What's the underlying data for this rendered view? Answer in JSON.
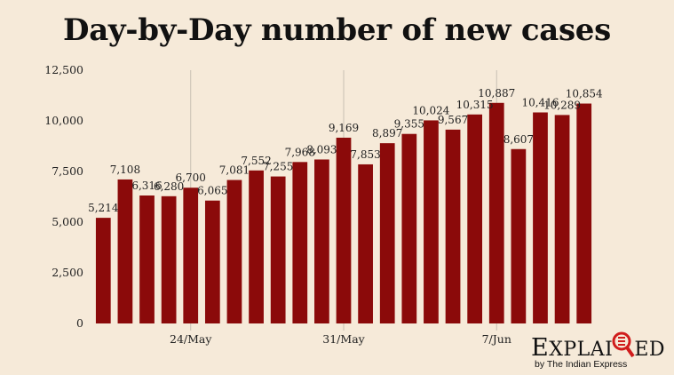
{
  "title": "Day-by-Day number of new cases",
  "chart_data": {
    "type": "bar",
    "title": "Day-by-Day number of new cases",
    "xlabel": "",
    "ylabel": "",
    "ylim": [
      0,
      12500
    ],
    "yticks": [
      "0",
      "2,500",
      "5,000",
      "7,500",
      "10,000",
      "12,500"
    ],
    "ytick_values": [
      0,
      2500,
      5000,
      7500,
      10000,
      12500
    ],
    "xtick_labels": [
      {
        "label": "24/May",
        "index": 4
      },
      {
        "label": "31/May",
        "index": 11
      },
      {
        "label": "7/Jun",
        "index": 18
      }
    ],
    "grid": "vertical lines at date ticks",
    "bar_color": "#8b0a0a",
    "values": [
      5214,
      7108,
      6316,
      6280,
      6700,
      6065,
      7081,
      7552,
      7255,
      7968,
      8093,
      9169,
      7853,
      8897,
      9355,
      10024,
      9567,
      10315,
      10887,
      8607,
      10416,
      10289,
      10854
    ],
    "labels": [
      "5,214",
      "7,108",
      "6,316",
      "6,280",
      "6,700",
      "6,065",
      "7,081",
      "7,552",
      "7,255",
      "7,968",
      "8,093",
      "9,169",
      "7,853",
      "8,897",
      "9,355",
      "10,024",
      "9,567",
      "10,315",
      "10,887",
      "8,607",
      "10,416",
      "10,289",
      "10,854"
    ]
  },
  "logo": {
    "word": "EXPLAINED",
    "byline": "by The Indian Express"
  },
  "colors": {
    "background": "#f6ead9",
    "bar": "#8b0a0a",
    "grid": "#c8c0b4",
    "logo_accent": "#d01c1c"
  }
}
